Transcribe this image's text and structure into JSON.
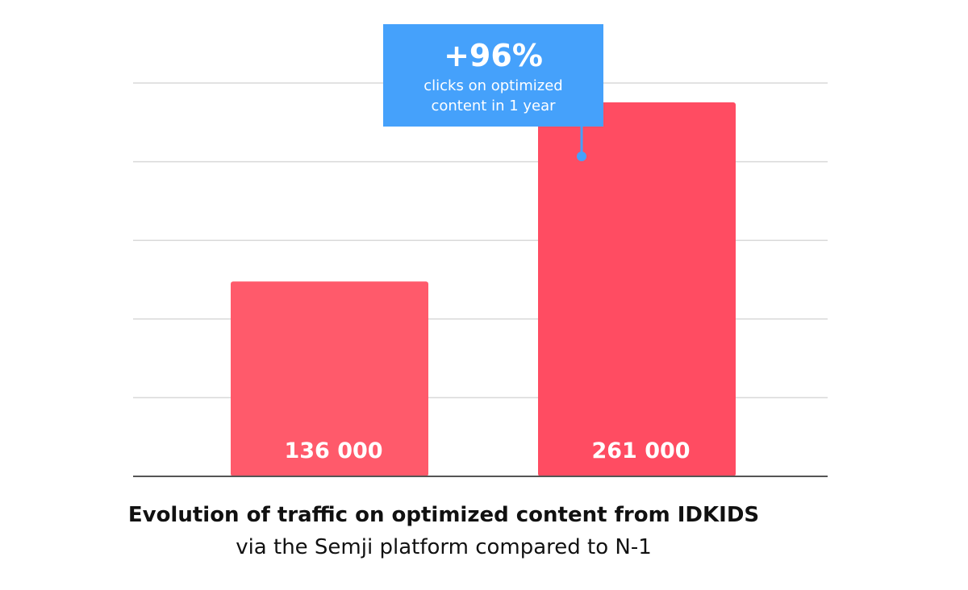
{
  "chart_data": {
    "type": "bar",
    "categories": [
      "",
      ""
    ],
    "values": [
      136000,
      261000
    ],
    "value_labels": [
      "136 000",
      "261 000"
    ],
    "ylim": [
      0,
      275000
    ],
    "grid": true,
    "colors": {
      "bars": [
        "#ff5a6b",
        "#ff4c62"
      ],
      "callout": "#45a1fb",
      "grid": "#d9d9d9",
      "axis": "#555555"
    },
    "callout": {
      "headline": "+96%",
      "line1": "clicks on optimized",
      "line2": "content in 1 year",
      "points_to_bar": 1
    },
    "title": "Evolution of traffic on optimized content from IDKIDS",
    "subtitle": "via the Semji platform compared to N-1"
  }
}
